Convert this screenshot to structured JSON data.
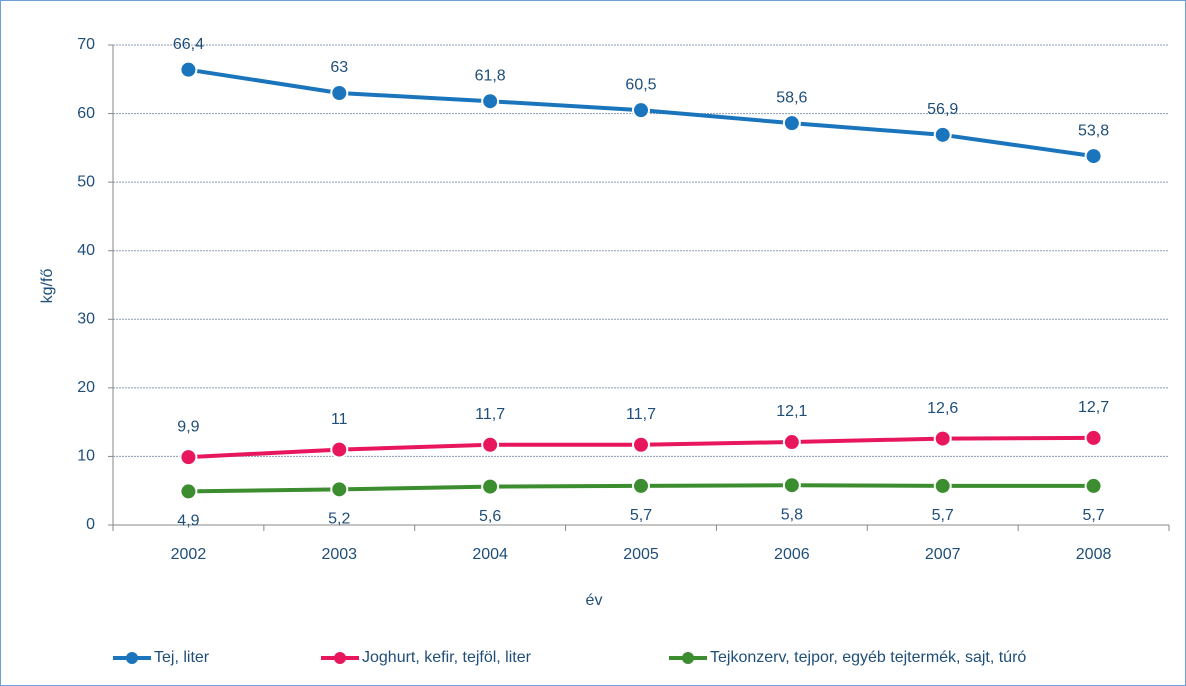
{
  "chart_data": {
    "type": "line",
    "y_label": "kg/fő",
    "x_label": "év",
    "categories": [
      "2002",
      "2003",
      "2004",
      "2005",
      "2006",
      "2007",
      "2008"
    ],
    "series": [
      {
        "name": "Tej, liter",
        "color": "#1a75bc",
        "values": [
          66.4,
          63,
          61.8,
          60.5,
          58.6,
          56.9,
          53.8
        ],
        "value_labels": [
          "66,4",
          "63",
          "61,8",
          "60,5",
          "58,6",
          "56,9",
          "53,8"
        ]
      },
      {
        "name": "Joghurt, kefir, tejföl, liter",
        "color": "#e8175d",
        "values": [
          9.9,
          11,
          11.7,
          11.7,
          12.1,
          12.6,
          12.7
        ],
        "value_labels": [
          "9,9",
          "11",
          "11,7",
          "11,7",
          "12,1",
          "12,6",
          "12,7"
        ]
      },
      {
        "name": "Tejkonzerv, tejpor, egyéb tejtermék, sajt, túró",
        "color": "#3c8d2f",
        "values": [
          4.9,
          5.2,
          5.6,
          5.7,
          5.8,
          5.7,
          5.7
        ],
        "value_labels": [
          "4,9",
          "5,2",
          "5,6",
          "5,7",
          "5,8",
          "5,7",
          "5,7"
        ]
      }
    ],
    "ylim": [
      0,
      70
    ],
    "yticks": [
      0,
      10,
      20,
      30,
      40,
      50,
      60,
      70
    ],
    "grid": true
  }
}
